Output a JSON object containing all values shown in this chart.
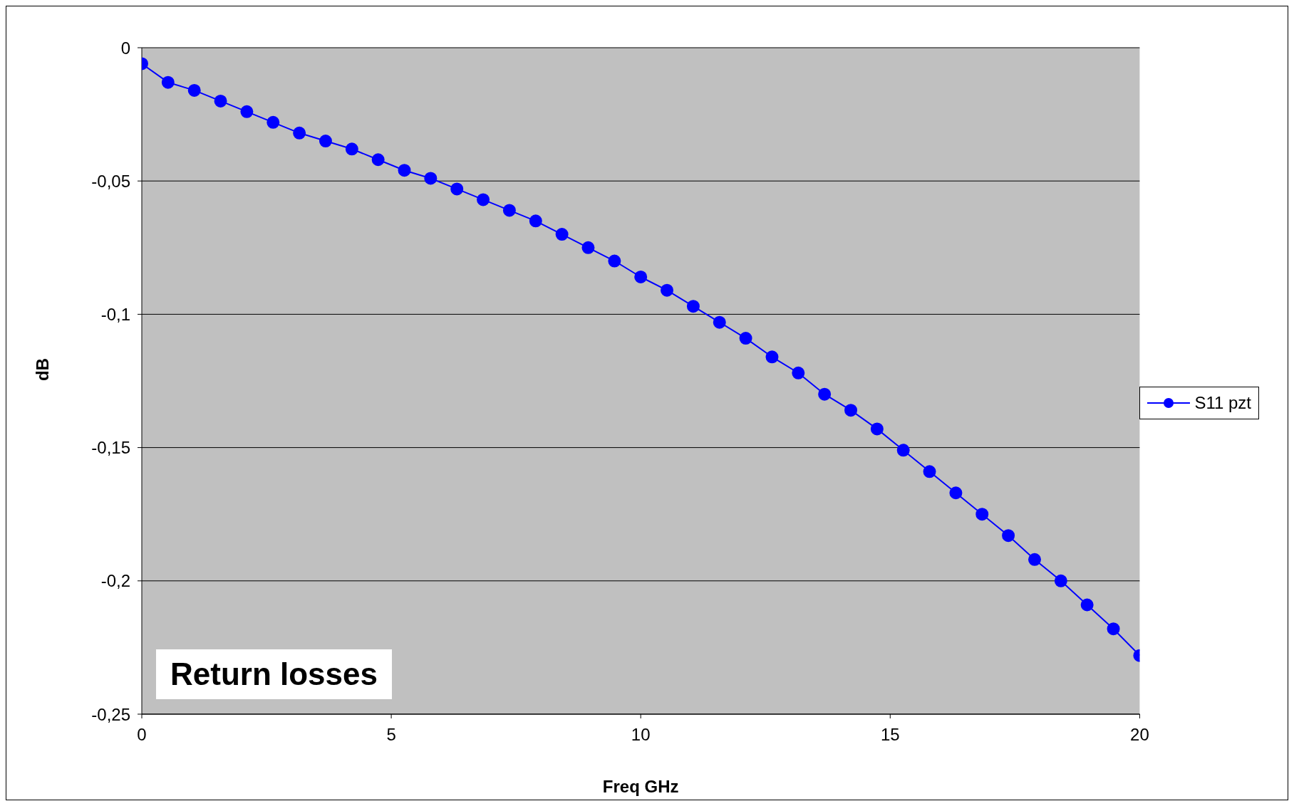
{
  "chart_data": {
    "type": "line",
    "title": "Return losses",
    "xlabel": "Freq GHz",
    "ylabel": "dB",
    "x": [
      0,
      0.526,
      1.053,
      1.579,
      2.105,
      2.632,
      3.158,
      3.684,
      4.211,
      4.737,
      5.263,
      5.789,
      6.316,
      6.842,
      7.368,
      7.895,
      8.421,
      8.947,
      9.474,
      10,
      10.526,
      11.053,
      11.579,
      12.105,
      12.632,
      13.158,
      13.684,
      14.211,
      14.737,
      15.263,
      15.789,
      16.316,
      16.842,
      17.368,
      17.895,
      18.421,
      18.947,
      19.474,
      20
    ],
    "series": [
      {
        "name": "S11  pzt",
        "color": "#0000ff",
        "values": [
          -0.006,
          -0.013,
          -0.016,
          -0.02,
          -0.024,
          -0.028,
          -0.032,
          -0.035,
          -0.038,
          -0.042,
          -0.046,
          -0.049,
          -0.053,
          -0.057,
          -0.061,
          -0.065,
          -0.07,
          -0.075,
          -0.08,
          -0.086,
          -0.091,
          -0.097,
          -0.103,
          -0.109,
          -0.116,
          -0.122,
          -0.13,
          -0.136,
          -0.143,
          -0.151,
          -0.159,
          -0.167,
          -0.175,
          -0.183,
          -0.192,
          -0.2,
          -0.209,
          -0.218,
          -0.228
        ]
      }
    ],
    "xlim": [
      0,
      20
    ],
    "xticks": [
      0,
      5,
      10,
      15,
      20
    ],
    "ylim": [
      -0.25,
      0
    ],
    "yticks": [
      {
        "value": -0.25,
        "label": "-0,25"
      },
      {
        "value": -0.2,
        "label": "-0,2"
      },
      {
        "value": -0.15,
        "label": "-0,15"
      },
      {
        "value": -0.1,
        "label": "-0,1"
      },
      {
        "value": -0.05,
        "label": "-0,05"
      },
      0
    ],
    "grid": "y",
    "legend": "right",
    "marker": "circle",
    "line_style": "solid"
  }
}
